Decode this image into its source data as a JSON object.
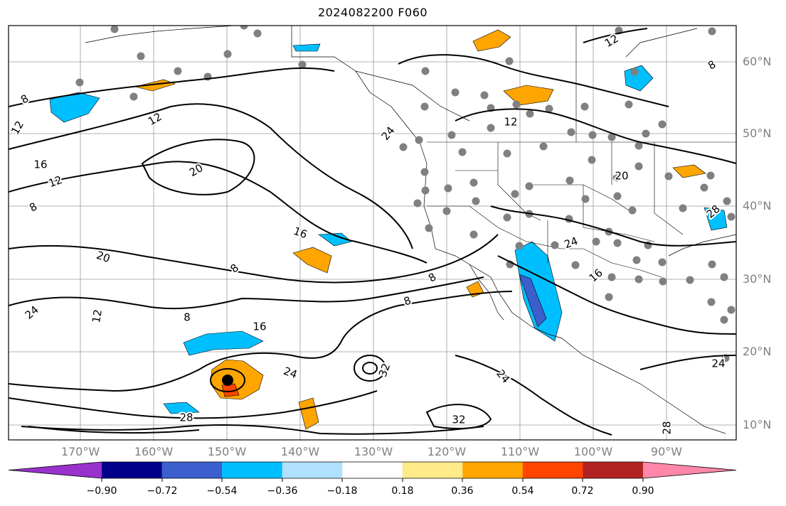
{
  "title": "2024082200 F060",
  "map": {
    "lat_labels": [
      "60°N",
      "50°N",
      "40°N",
      "30°N",
      "20°N",
      "10°N"
    ],
    "lon_labels": [
      "170°W",
      "160°W",
      "150°W",
      "140°W",
      "130°W",
      "120°W",
      "110°W",
      "100°W",
      "90°W"
    ],
    "contour_labels": [
      "8",
      "12",
      "12",
      "16",
      "12",
      "20",
      "8",
      "16",
      "20",
      "8",
      "24",
      "12",
      "8",
      "16",
      "8",
      "24",
      "28",
      "32",
      "24",
      "32",
      "28",
      "12",
      "8",
      "12",
      "24",
      "20",
      "24",
      "16",
      "8",
      "24",
      "28"
    ]
  },
  "colorbar": {
    "labels": [
      "−0.90",
      "−0.72",
      "−0.54",
      "−0.36",
      "−0.18",
      "0.18",
      "0.36",
      "0.54",
      "0.72",
      "0.90"
    ],
    "colors": [
      "#9932cc",
      "#00008b",
      "#3b5fcd",
      "#00bfff",
      "#b0e2ff",
      "#ffffff",
      "#ffea8a",
      "#ffa500",
      "#ff4500",
      "#b22222",
      "#ff88aa"
    ]
  }
}
